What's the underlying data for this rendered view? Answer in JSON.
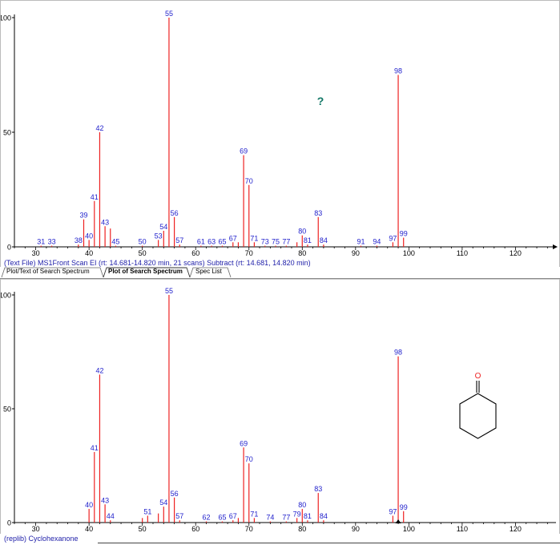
{
  "tabs": [
    {
      "label": "Plot/Text of Search Spectrum",
      "active": false
    },
    {
      "label": "Plot of Search Spectrum",
      "active": true
    },
    {
      "label": "Spec List",
      "active": false
    }
  ],
  "top_info": "(Text File) MS1Front Scan EI (rt: 14.681-14.820 min, 21 scans) Subtract (rt: 14.681, 14.820 min)",
  "bottom_info": "(replib) Cyclohexanone",
  "unknown_marker": "?",
  "structure_atom": "O",
  "colors": {
    "peak": "#ee2222",
    "label": "#2222cc",
    "axis": "#000000",
    "marker": "#117766",
    "structure": "#000000",
    "oxygen": "#ee2222"
  },
  "chart_data": [
    {
      "type": "bar",
      "xlim": [
        26,
        127
      ],
      "ylim": [
        0,
        100
      ],
      "xticks": [
        30,
        40,
        50,
        60,
        70,
        80,
        90,
        100,
        110,
        120
      ],
      "yticks": [
        0,
        50,
        100
      ],
      "peaks": [
        {
          "mz": 31,
          "intensity": 0.5,
          "label": "31"
        },
        {
          "mz": 33,
          "intensity": 0.5,
          "label": "33"
        },
        {
          "mz": 38,
          "intensity": 1,
          "label": "38"
        },
        {
          "mz": 39,
          "intensity": 12,
          "label": "39"
        },
        {
          "mz": 40,
          "intensity": 3,
          "label": "40"
        },
        {
          "mz": 41,
          "intensity": 20,
          "label": "41"
        },
        {
          "mz": 42,
          "intensity": 50,
          "label": "42"
        },
        {
          "mz": 43,
          "intensity": 9,
          "label": "43"
        },
        {
          "mz": 44,
          "intensity": 8,
          "label": ""
        },
        {
          "mz": 45,
          "intensity": 0.5,
          "label": "45"
        },
        {
          "mz": 50,
          "intensity": 0.5,
          "label": "50"
        },
        {
          "mz": 53,
          "intensity": 3,
          "label": "53"
        },
        {
          "mz": 54,
          "intensity": 7,
          "label": "54"
        },
        {
          "mz": 55,
          "intensity": 100,
          "label": "55"
        },
        {
          "mz": 56,
          "intensity": 13,
          "label": "56"
        },
        {
          "mz": 57,
          "intensity": 1,
          "label": "57"
        },
        {
          "mz": 61,
          "intensity": 0.5,
          "label": "61"
        },
        {
          "mz": 63,
          "intensity": 0.5,
          "label": "63"
        },
        {
          "mz": 65,
          "intensity": 0.5,
          "label": "65"
        },
        {
          "mz": 67,
          "intensity": 2,
          "label": "67"
        },
        {
          "mz": 68,
          "intensity": 2,
          "label": ""
        },
        {
          "mz": 69,
          "intensity": 40,
          "label": "69"
        },
        {
          "mz": 70,
          "intensity": 27,
          "label": "70"
        },
        {
          "mz": 71,
          "intensity": 2,
          "label": "71"
        },
        {
          "mz": 73,
          "intensity": 0.5,
          "label": "73"
        },
        {
          "mz": 75,
          "intensity": 0.5,
          "label": "75"
        },
        {
          "mz": 77,
          "intensity": 0.5,
          "label": "77"
        },
        {
          "mz": 79,
          "intensity": 2,
          "label": ""
        },
        {
          "mz": 80,
          "intensity": 5,
          "label": "80"
        },
        {
          "mz": 81,
          "intensity": 1,
          "label": "81"
        },
        {
          "mz": 83,
          "intensity": 13,
          "label": "83"
        },
        {
          "mz": 84,
          "intensity": 1,
          "label": "84"
        },
        {
          "mz": 91,
          "intensity": 0.5,
          "label": "91"
        },
        {
          "mz": 94,
          "intensity": 0.5,
          "label": "94"
        },
        {
          "mz": 97,
          "intensity": 2,
          "label": "97"
        },
        {
          "mz": 98,
          "intensity": 75,
          "label": "98"
        },
        {
          "mz": 99,
          "intensity": 4,
          "label": "99"
        }
      ]
    },
    {
      "type": "bar",
      "xlim": [
        26,
        127
      ],
      "ylim": [
        0,
        100
      ],
      "xticks": [
        30,
        40,
        50,
        60,
        70,
        80,
        90,
        100,
        110,
        120
      ],
      "yticks": [
        0,
        50,
        100
      ],
      "peaks": [
        {
          "mz": 40,
          "intensity": 6,
          "label": "40"
        },
        {
          "mz": 41,
          "intensity": 31,
          "label": "41"
        },
        {
          "mz": 42,
          "intensity": 65,
          "label": "42"
        },
        {
          "mz": 43,
          "intensity": 8,
          "label": "43"
        },
        {
          "mz": 44,
          "intensity": 1,
          "label": "44"
        },
        {
          "mz": 50,
          "intensity": 2,
          "label": ""
        },
        {
          "mz": 51,
          "intensity": 3,
          "label": "51"
        },
        {
          "mz": 53,
          "intensity": 4,
          "label": ""
        },
        {
          "mz": 54,
          "intensity": 7,
          "label": "54"
        },
        {
          "mz": 55,
          "intensity": 100,
          "label": "55"
        },
        {
          "mz": 56,
          "intensity": 11,
          "label": "56"
        },
        {
          "mz": 57,
          "intensity": 1,
          "label": "57"
        },
        {
          "mz": 62,
          "intensity": 0.5,
          "label": "62"
        },
        {
          "mz": 65,
          "intensity": 0.5,
          "label": "65"
        },
        {
          "mz": 67,
          "intensity": 1,
          "label": "67"
        },
        {
          "mz": 68,
          "intensity": 2,
          "label": ""
        },
        {
          "mz": 69,
          "intensity": 33,
          "label": "69"
        },
        {
          "mz": 70,
          "intensity": 26,
          "label": "70"
        },
        {
          "mz": 71,
          "intensity": 2,
          "label": "71"
        },
        {
          "mz": 74,
          "intensity": 0.5,
          "label": "74"
        },
        {
          "mz": 77,
          "intensity": 0.5,
          "label": "77"
        },
        {
          "mz": 79,
          "intensity": 2,
          "label": "79"
        },
        {
          "mz": 80,
          "intensity": 6,
          "label": "80"
        },
        {
          "mz": 81,
          "intensity": 1,
          "label": "81"
        },
        {
          "mz": 83,
          "intensity": 13,
          "label": "83"
        },
        {
          "mz": 84,
          "intensity": 1,
          "label": "84"
        },
        {
          "mz": 97,
          "intensity": 3,
          "label": "97"
        },
        {
          "mz": 98,
          "intensity": 73,
          "label": "98"
        },
        {
          "mz": 99,
          "intensity": 5,
          "label": "99"
        }
      ]
    }
  ]
}
